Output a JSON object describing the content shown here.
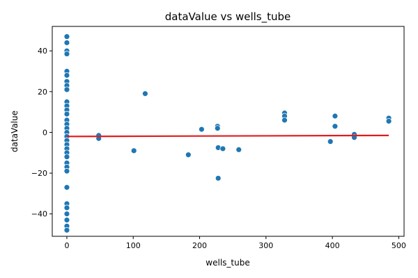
{
  "chart_data": {
    "type": "scatter",
    "title": "dataValue vs wells_tube",
    "xlabel": "wells_tube",
    "ylabel": "dataValue",
    "xlim": [
      -22,
      508
    ],
    "ylim": [
      -51,
      52
    ],
    "x_ticks": [
      0,
      100,
      200,
      300,
      400,
      500
    ],
    "y_ticks": [
      -40,
      -20,
      0,
      20,
      40
    ],
    "grid": false,
    "legend": "none",
    "colors": {
      "points": "#1f77b4",
      "halo": "#c9d9e8",
      "trend": "#e41a1c"
    },
    "points": [
      {
        "x": 0,
        "y": 47
      },
      {
        "x": 0,
        "y": 44
      },
      {
        "x": 0,
        "y": 40
      },
      {
        "x": 0,
        "y": 38.5
      },
      {
        "x": 0,
        "y": 30
      },
      {
        "x": 0,
        "y": 28
      },
      {
        "x": 0,
        "y": 25
      },
      {
        "x": 0,
        "y": 23
      },
      {
        "x": 0,
        "y": 21
      },
      {
        "x": 0,
        "y": 15
      },
      {
        "x": 0,
        "y": 13
      },
      {
        "x": 0,
        "y": 11
      },
      {
        "x": 0,
        "y": 9
      },
      {
        "x": 0,
        "y": 6
      },
      {
        "x": 0,
        "y": 4
      },
      {
        "x": 0,
        "y": 2
      },
      {
        "x": 0,
        "y": 0
      },
      {
        "x": 0,
        "y": -2
      },
      {
        "x": 0,
        "y": -4
      },
      {
        "x": 0,
        "y": -6
      },
      {
        "x": 0,
        "y": -8
      },
      {
        "x": 0,
        "y": -10
      },
      {
        "x": 0,
        "y": -12
      },
      {
        "x": 0,
        "y": -15
      },
      {
        "x": 0,
        "y": -17
      },
      {
        "x": 0,
        "y": -19
      },
      {
        "x": 0,
        "y": -27
      },
      {
        "x": 0,
        "y": -35
      },
      {
        "x": 0,
        "y": -37
      },
      {
        "x": 0,
        "y": -40
      },
      {
        "x": 0,
        "y": -43
      },
      {
        "x": 0,
        "y": -46
      },
      {
        "x": 0,
        "y": -48
      },
      {
        "x": 48,
        "y": -1.5
      },
      {
        "x": 48,
        "y": -3
      },
      {
        "x": 101,
        "y": -9
      },
      {
        "x": 118,
        "y": 19
      },
      {
        "x": 183,
        "y": -11
      },
      {
        "x": 203,
        "y": 1.5
      },
      {
        "x": 227,
        "y": 3
      },
      {
        "x": 227,
        "y": 2
      },
      {
        "x": 228,
        "y": -7.5
      },
      {
        "x": 228,
        "y": -22.5
      },
      {
        "x": 235,
        "y": -8
      },
      {
        "x": 259,
        "y": -8.5
      },
      {
        "x": 328,
        "y": 9.5
      },
      {
        "x": 328,
        "y": 8
      },
      {
        "x": 328,
        "y": 6
      },
      {
        "x": 397,
        "y": -4.5
      },
      {
        "x": 404,
        "y": 8
      },
      {
        "x": 404,
        "y": 3
      },
      {
        "x": 433,
        "y": -1
      },
      {
        "x": 433,
        "y": -2.5
      },
      {
        "x": 485,
        "y": 7
      },
      {
        "x": 485,
        "y": 5.5
      }
    ],
    "trend_line": {
      "x": [
        0,
        485
      ],
      "y": [
        -2,
        -1.5
      ]
    }
  }
}
